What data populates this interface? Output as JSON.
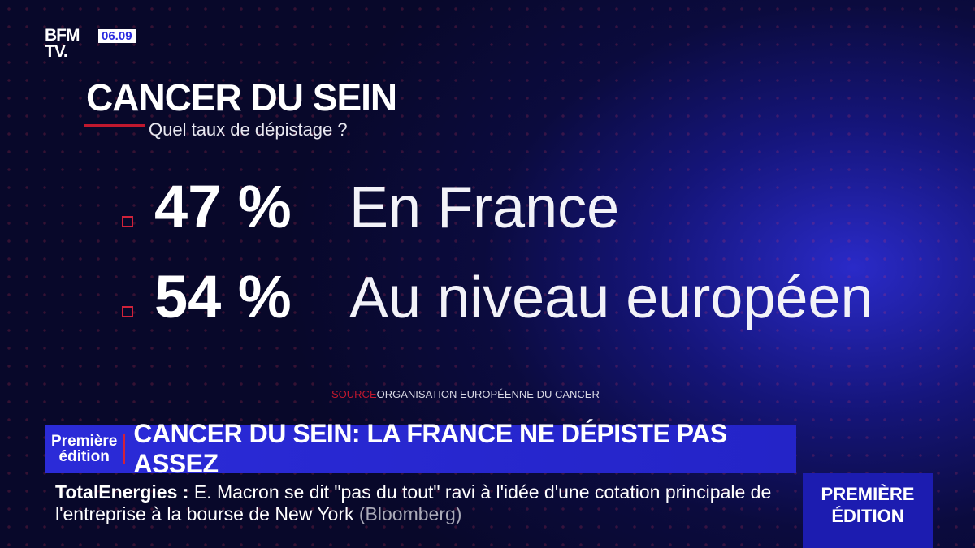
{
  "logo": "BFM TV.",
  "logo_lines": [
    "BFM",
    "TV."
  ],
  "time": "06.09",
  "title": "CANCER DU SEIN",
  "subtitle": "Quel taux de dépistage ?",
  "stats": [
    {
      "value": "47 %",
      "label": "En France"
    },
    {
      "value": "54 %",
      "label": "Au niveau européen"
    }
  ],
  "source_label": "SOURCE",
  "source_text": "ORGANISATION EUROPÉENNE DU CANCER",
  "banner": {
    "edition_line1": "Première",
    "edition_line2": "édition",
    "headline": "CANCER DU SEIN: LA FRANCE NE DÉPISTE PAS ASSEZ"
  },
  "ticker": {
    "topic": "TotalEnergies :",
    "text": "E. Macron se dit \"pas du tout\" ravi à l'idée d'une cotation principale de l'entreprise à la bourse de New York",
    "source": "(Bloomberg)"
  },
  "show": {
    "line1": "PREMIÈRE",
    "line2": "ÉDITION"
  }
}
